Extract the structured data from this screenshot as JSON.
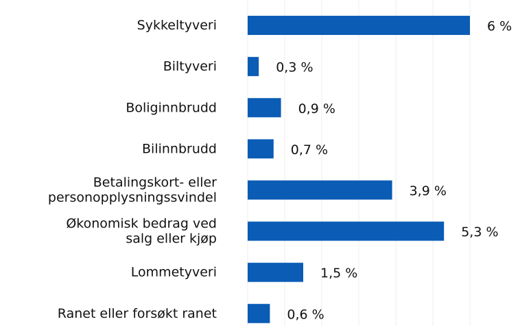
{
  "chart_data": {
    "type": "bar",
    "orientation": "horizontal",
    "categories": [
      "Sykkeltyveri",
      "Biltyveri",
      "Boliginnbrudd",
      "Bilinnbrudd",
      "Betalingskort- eller\npersonopplysningssvindel",
      "Økonomisk bedrag ved\nsalg eller kjøp",
      "Lommetyveri",
      "Ranet eller forsøkt ranet"
    ],
    "values": [
      6,
      0.3,
      0.9,
      0.7,
      3.9,
      5.3,
      1.5,
      0.6
    ],
    "value_labels": [
      "6 %",
      "0,3 %",
      "0,9 %",
      "0,7 %",
      "3,9 %",
      "5,3 %",
      "1,5 %",
      "0,6 %"
    ],
    "color": "#0a5cb5",
    "xlim": [
      0,
      6
    ],
    "xticks": [
      0,
      1,
      2,
      3,
      4,
      5,
      6
    ],
    "grid": true
  }
}
